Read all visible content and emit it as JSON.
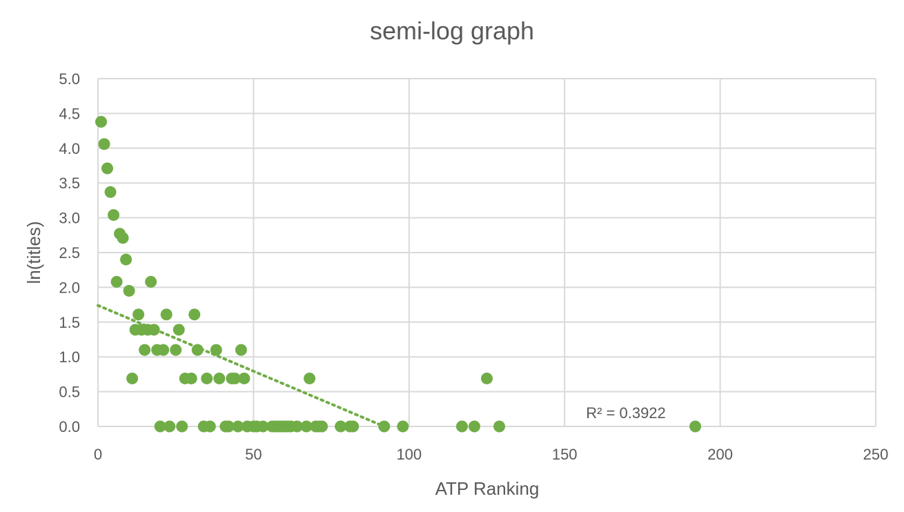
{
  "chart_data": {
    "type": "scatter",
    "title": "semi-log graph",
    "xlabel": "ATP Ranking",
    "ylabel": "ln(titles)",
    "xlim": [
      0,
      250
    ],
    "ylim": [
      0,
      5
    ],
    "x_ticks": [
      "0",
      "50",
      "100",
      "150",
      "200",
      "250"
    ],
    "y_ticks": [
      "0.0",
      "0.5",
      "1.0",
      "1.5",
      "2.0",
      "2.5",
      "3.0",
      "3.5",
      "4.0",
      "4.5",
      "5.0"
    ],
    "grid": true,
    "points": [
      [
        1,
        4.38
      ],
      [
        2,
        4.06
      ],
      [
        3,
        3.71
      ],
      [
        4,
        3.37
      ],
      [
        5,
        3.04
      ],
      [
        6,
        2.08
      ],
      [
        7,
        2.77
      ],
      [
        8,
        2.71
      ],
      [
        9,
        2.4
      ],
      [
        10,
        1.95
      ],
      [
        11,
        0.69
      ],
      [
        12,
        1.39
      ],
      [
        13,
        1.61
      ],
      [
        14,
        1.39
      ],
      [
        15,
        1.1
      ],
      [
        16,
        1.39
      ],
      [
        17,
        2.08
      ],
      [
        18,
        1.39
      ],
      [
        19,
        1.1
      ],
      [
        20,
        0
      ],
      [
        21,
        1.1
      ],
      [
        22,
        1.61
      ],
      [
        23,
        0
      ],
      [
        25,
        1.1
      ],
      [
        26,
        1.39
      ],
      [
        27,
        0
      ],
      [
        28,
        0.69
      ],
      [
        30,
        0.69
      ],
      [
        31,
        1.61
      ],
      [
        32,
        1.1
      ],
      [
        34,
        0
      ],
      [
        35,
        0.69
      ],
      [
        36,
        0
      ],
      [
        38,
        1.1
      ],
      [
        39,
        0.69
      ],
      [
        41,
        0
      ],
      [
        42,
        0
      ],
      [
        43,
        0.69
      ],
      [
        44,
        0.69
      ],
      [
        45,
        0
      ],
      [
        46,
        1.1
      ],
      [
        47,
        0.69
      ],
      [
        48,
        0
      ],
      [
        50,
        0
      ],
      [
        51,
        0
      ],
      [
        53,
        0
      ],
      [
        56,
        0
      ],
      [
        57,
        0
      ],
      [
        58,
        0
      ],
      [
        59,
        0
      ],
      [
        60,
        0
      ],
      [
        61,
        0
      ],
      [
        62,
        0
      ],
      [
        64,
        0
      ],
      [
        67,
        0
      ],
      [
        68,
        0.69
      ],
      [
        70,
        0
      ],
      [
        71,
        0
      ],
      [
        72,
        0
      ],
      [
        78,
        0
      ],
      [
        81,
        0
      ],
      [
        82,
        0
      ],
      [
        92,
        0
      ],
      [
        98,
        0
      ],
      [
        117,
        0
      ],
      [
        121,
        0
      ],
      [
        125,
        0.69
      ],
      [
        129,
        0
      ],
      [
        192,
        0
      ]
    ],
    "trendline": {
      "type": "linear",
      "x_range": [
        0,
        92
      ],
      "y_at_start": 1.74,
      "style": "dotted"
    },
    "annotations": [
      "R² = 0.3922"
    ],
    "colors": {
      "marker": "#70ad47",
      "trendline": "#70ad47",
      "grid": "#d9d9d9",
      "text": "#595959"
    }
  }
}
